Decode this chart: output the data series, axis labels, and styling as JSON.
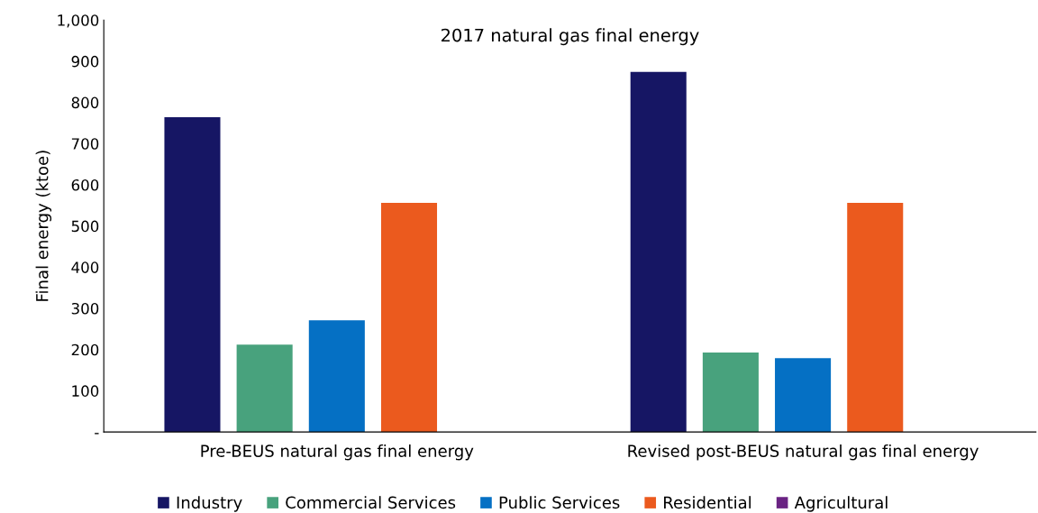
{
  "chart_data": {
    "type": "bar",
    "title": "2017 natural gas final energy",
    "ylabel": "Final energy (ktoe)",
    "categories": [
      "Pre-BEUS natural gas final energy",
      "Revised post-BEUS natural gas final energy"
    ],
    "series": [
      {
        "name": "Industry",
        "color": "#161664",
        "values": [
          764,
          874
        ]
      },
      {
        "name": "Commercial Services",
        "color": "#48a27d",
        "values": [
          212,
          193
        ]
      },
      {
        "name": "Public Services",
        "color": "#0570c4",
        "values": [
          271,
          179
        ]
      },
      {
        "name": "Residential",
        "color": "#eb5a1e",
        "values": [
          556,
          556
        ]
      },
      {
        "name": "Agricultural",
        "color": "#6a2383",
        "values": [
          0,
          0
        ]
      }
    ],
    "ylim": [
      0,
      1000
    ],
    "yticks": [
      {
        "value": 0,
        "label": "-"
      },
      100,
      200,
      300,
      400,
      500,
      600,
      700,
      800,
      900,
      {
        "value": 1000,
        "label": "1,000"
      }
    ],
    "grid": false,
    "legend": "bottom"
  }
}
